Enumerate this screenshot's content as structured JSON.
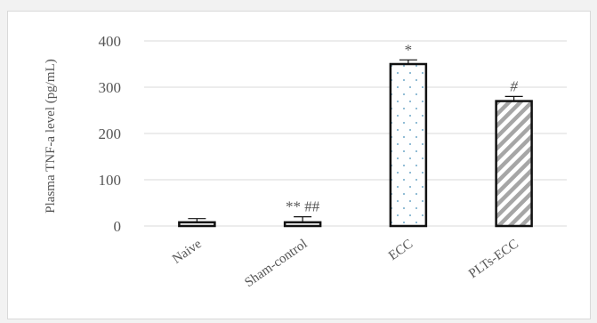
{
  "chart_data": {
    "type": "bar",
    "title": "",
    "xlabel": "",
    "ylabel": "Plasma TNF-a level (pg/mL)",
    "ylim": [
      0,
      400
    ],
    "yticks": [
      "0",
      "100",
      "200",
      "300",
      "400"
    ],
    "grid": true,
    "legend": "none",
    "categories": [
      "Naive",
      "Sham-control",
      "ECC",
      "PLTs-ECC"
    ],
    "values": [
      8,
      8,
      350,
      270
    ],
    "errors": [
      8,
      12,
      9,
      10
    ],
    "annotations": [
      "",
      "** ##",
      "*",
      "#"
    ],
    "fills": [
      "solid-white",
      "solid-white",
      "dotted",
      "diagonal-hatch"
    ],
    "colors": {
      "outline": "#111111",
      "grid": "#d9d9d9",
      "text": "#555555",
      "hatch": "#a6a6a6",
      "dots": "#6fa8c8"
    }
  }
}
